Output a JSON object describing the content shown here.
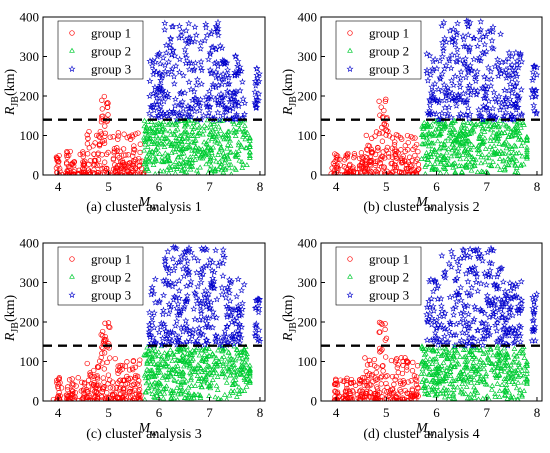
{
  "chart_data": [
    {
      "type": "scatter",
      "caption": "(a) cluster analysis 1",
      "xlabel": "M",
      "xlabel_sub": "w",
      "ylabel": "R",
      "ylabel_sub": "JB",
      "ylabel_unit": "(km)",
      "xlim": [
        3.7,
        8.1
      ],
      "ylim": [
        0,
        400
      ],
      "xticks": [
        4,
        5,
        6,
        7,
        8
      ],
      "yticks": [
        0,
        100,
        200,
        300,
        400
      ],
      "threshold_y": 140,
      "legend_position": "top-left",
      "series": [
        {
          "name": "group 1",
          "marker": "circle",
          "color": "#ff0000",
          "x_range": [
            3.9,
            5.7
          ],
          "y_range": [
            0,
            200
          ]
        },
        {
          "name": "group 2",
          "marker": "triangle",
          "color": "#00cc33",
          "x_range": [
            5.7,
            7.8
          ],
          "y_range": [
            0,
            140
          ]
        },
        {
          "name": "group 3",
          "marker": "star",
          "color": "#0000cc",
          "x_range": [
            5.8,
            8.0
          ],
          "y_range": [
            140,
            395
          ]
        }
      ]
    },
    {
      "type": "scatter",
      "caption": "(b) cluster analysis 2",
      "xlabel": "M",
      "xlabel_sub": "w",
      "ylabel": "R",
      "ylabel_sub": "JB",
      "ylabel_unit": "(km)",
      "xlim": [
        3.7,
        8.1
      ],
      "ylim": [
        0,
        400
      ],
      "xticks": [
        4,
        5,
        6,
        7,
        8
      ],
      "yticks": [
        0,
        100,
        200,
        300,
        400
      ],
      "threshold_y": 140,
      "legend_position": "top-left",
      "series": [
        {
          "name": "group 1",
          "marker": "circle",
          "color": "#ff0000",
          "x_range": [
            3.9,
            5.7
          ],
          "y_range": [
            0,
            200
          ]
        },
        {
          "name": "group 2",
          "marker": "triangle",
          "color": "#00cc33",
          "x_range": [
            5.7,
            7.8
          ],
          "y_range": [
            0,
            140
          ]
        },
        {
          "name": "group 3",
          "marker": "star",
          "color": "#0000cc",
          "x_range": [
            5.8,
            8.0
          ],
          "y_range": [
            140,
            395
          ]
        }
      ]
    },
    {
      "type": "scatter",
      "caption": "(c) cluster analysis 3",
      "xlabel": "M",
      "xlabel_sub": "w",
      "ylabel": "R",
      "ylabel_sub": "JB",
      "ylabel_unit": "(km)",
      "xlim": [
        3.7,
        8.1
      ],
      "ylim": [
        0,
        400
      ],
      "xticks": [
        4,
        5,
        6,
        7,
        8
      ],
      "yticks": [
        0,
        100,
        200,
        300,
        400
      ],
      "threshold_y": 140,
      "legend_position": "top-left",
      "series": [
        {
          "name": "group 1",
          "marker": "circle",
          "color": "#ff0000",
          "x_range": [
            3.9,
            5.7
          ],
          "y_range": [
            0,
            200
          ]
        },
        {
          "name": "group 2",
          "marker": "triangle",
          "color": "#00cc33",
          "x_range": [
            5.7,
            7.8
          ],
          "y_range": [
            0,
            140
          ]
        },
        {
          "name": "group 3",
          "marker": "star",
          "color": "#0000cc",
          "x_range": [
            5.8,
            8.0
          ],
          "y_range": [
            140,
            395
          ]
        }
      ]
    },
    {
      "type": "scatter",
      "caption": "(d) cluster analysis 4",
      "xlabel": "M",
      "xlabel_sub": "w",
      "ylabel": "R",
      "ylabel_sub": "JB",
      "ylabel_unit": "(km)",
      "xlim": [
        3.7,
        8.1
      ],
      "ylim": [
        0,
        400
      ],
      "xticks": [
        4,
        5,
        6,
        7,
        8
      ],
      "yticks": [
        0,
        100,
        200,
        300,
        400
      ],
      "threshold_y": 140,
      "legend_position": "top-left",
      "series": [
        {
          "name": "group 1",
          "marker": "circle",
          "color": "#ff0000",
          "x_range": [
            3.9,
            5.7
          ],
          "y_range": [
            0,
            200
          ]
        },
        {
          "name": "group 2",
          "marker": "triangle",
          "color": "#00cc33",
          "x_range": [
            5.7,
            7.8
          ],
          "y_range": [
            0,
            140
          ]
        },
        {
          "name": "group 3",
          "marker": "star",
          "color": "#0000cc",
          "x_range": [
            5.8,
            8.0
          ],
          "y_range": [
            140,
            395
          ]
        }
      ]
    }
  ]
}
